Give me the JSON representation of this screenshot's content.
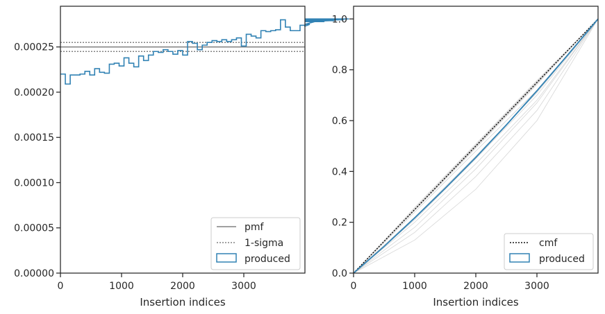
{
  "chart_data": [
    {
      "type": "step",
      "xlabel": "Insertion indices",
      "ylabel": "",
      "xlim": [
        0,
        4000
      ],
      "ylim": [
        0,
        0.000295
      ],
      "xticks": [
        0,
        1000,
        2000,
        3000
      ],
      "xtick_labels": [
        "0",
        "1000",
        "2000",
        "3000"
      ],
      "yticks": [
        0,
        5e-05,
        0.0001,
        0.00015,
        0.0002,
        0.00025
      ],
      "ytick_labels": [
        "0.00000",
        "0.00005",
        "0.00010",
        "0.00015",
        "0.00020",
        "0.00025"
      ],
      "grid": false,
      "legend_position": "bottom-right",
      "lines": {
        "pmf": {
          "name": "pmf",
          "value": 0.00025,
          "color": "#808080",
          "style": "solid"
        },
        "sigma": {
          "name": "1-sigma",
          "values": [
            0.000245,
            0.000255
          ],
          "color": "#808080",
          "style": "dotted"
        }
      },
      "series": [
        {
          "name": "produced",
          "color": "#3182b4",
          "bin_width": 80,
          "values": [
            0.00022,
            0.000209,
            0.000219,
            0.000219,
            0.00022,
            0.000223,
            0.000219,
            0.000226,
            0.000222,
            0.000221,
            0.000231,
            0.000232,
            0.000229,
            0.000238,
            0.000232,
            0.000228,
            0.00024,
            0.000235,
            0.000241,
            0.000245,
            0.000244,
            0.000247,
            0.000245,
            0.000242,
            0.000246,
            0.000241,
            0.000256,
            0.000254,
            0.000247,
            0.000252,
            0.000255,
            0.000257,
            0.000256,
            0.000258,
            0.000256,
            0.000258,
            0.00026,
            0.000251,
            0.000264,
            0.000262,
            0.00026,
            0.000268,
            0.000267,
            0.000268,
            0.000269,
            0.00028,
            0.000272,
            0.000268,
            0.000268,
            0.000274,
            0.000273,
            0.000275,
            0.000278,
            0.000278,
            0.000278,
            0.000279,
            0.000279,
            0.00028,
            0.00028,
            0.000281
          ]
        }
      ]
    },
    {
      "type": "line",
      "xlabel": "Insertion indices",
      "ylabel": "",
      "xlim": [
        0,
        4000
      ],
      "ylim": [
        0,
        1.05
      ],
      "xticks": [
        0,
        1000,
        2000,
        3000
      ],
      "xtick_labels": [
        "0",
        "1000",
        "2000",
        "3000"
      ],
      "yticks": [
        0,
        0.2,
        0.4,
        0.6,
        0.8,
        1.0
      ],
      "ytick_labels": [
        "0.0",
        "0.2",
        "0.4",
        "0.6",
        "0.8",
        "1.0"
      ],
      "grid": false,
      "legend_position": "bottom-right",
      "reference": {
        "name": "cmf",
        "x": [
          0,
          4000
        ],
        "y": [
          0,
          1
        ],
        "color": "#111111",
        "style": "dotted"
      },
      "sigma_band": {
        "x": [
          0,
          1000,
          2000,
          3000,
          4000
        ],
        "lower": [
          0,
          0.245,
          0.49,
          0.74,
          1
        ],
        "upper": [
          0,
          0.26,
          0.51,
          0.76,
          1
        ],
        "color": "#c8c8c8"
      },
      "faint_curves": [
        {
          "x": [
            0,
            1000,
            2000,
            3000,
            4000
          ],
          "y": [
            0,
            0.24,
            0.48,
            0.72,
            1
          ]
        },
        {
          "x": [
            0,
            1000,
            2000,
            3000,
            4000
          ],
          "y": [
            0,
            0.22,
            0.46,
            0.71,
            1
          ]
        },
        {
          "x": [
            0,
            1000,
            2000,
            3000,
            4000
          ],
          "y": [
            0,
            0.2,
            0.43,
            0.68,
            1
          ]
        },
        {
          "x": [
            0,
            1000,
            2000,
            3000,
            4000
          ],
          "y": [
            0,
            0.18,
            0.41,
            0.67,
            1
          ]
        },
        {
          "x": [
            0,
            1000,
            2000,
            3000,
            4000
          ],
          "y": [
            0,
            0.16,
            0.38,
            0.64,
            1
          ]
        },
        {
          "x": [
            0,
            1000,
            2000,
            3000,
            4000
          ],
          "y": [
            0,
            0.13,
            0.33,
            0.6,
            1
          ]
        },
        {
          "x": [
            0,
            1000,
            2000,
            3000,
            4000
          ],
          "y": [
            0,
            0.25,
            0.5,
            0.75,
            1
          ]
        },
        {
          "x": [
            0,
            1000,
            2000,
            3000,
            4000
          ],
          "y": [
            0,
            0.21,
            0.45,
            0.7,
            1
          ]
        }
      ],
      "series": [
        {
          "name": "produced",
          "color": "#3182b4",
          "x": [
            0,
            500,
            1000,
            1500,
            2000,
            2500,
            3000,
            3500,
            4000
          ],
          "y": [
            0,
            0.105,
            0.217,
            0.334,
            0.455,
            0.583,
            0.717,
            0.857,
            1.0
          ]
        }
      ]
    }
  ]
}
